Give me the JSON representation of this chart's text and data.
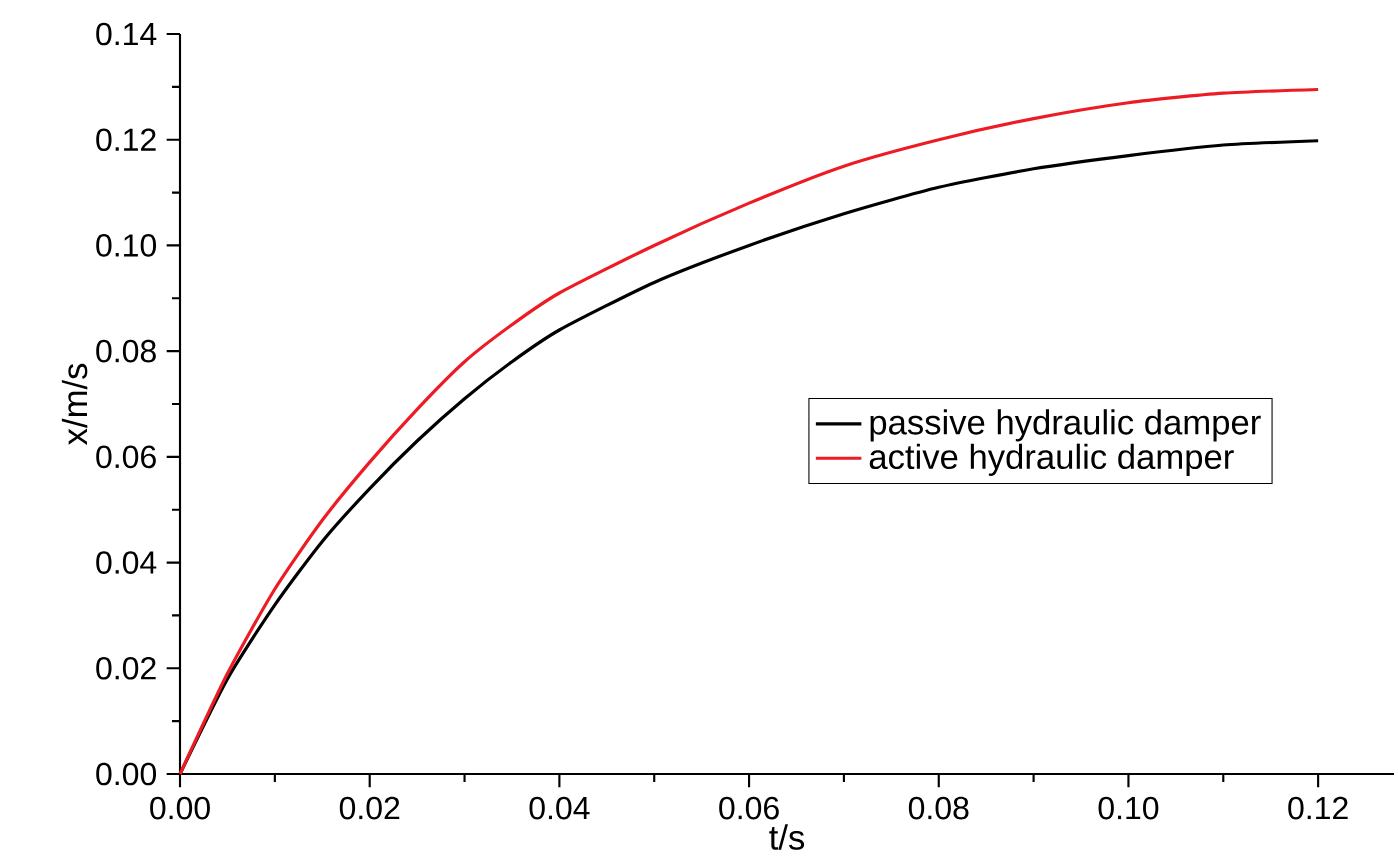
{
  "chart_data": {
    "type": "line",
    "xlabel": "t/s",
    "ylabel": "x/m/s",
    "xlim": [
      0,
      0.128
    ],
    "ylim": [
      0,
      0.14
    ],
    "xticks": [
      {
        "value": 0,
        "label": "0.00"
      },
      {
        "value": 0.02,
        "label": "0.02"
      },
      {
        "value": 0.04,
        "label": "0.04"
      },
      {
        "value": 0.06,
        "label": "0.06"
      },
      {
        "value": 0.08,
        "label": "0.08"
      },
      {
        "value": 0.1,
        "label": "0.10"
      },
      {
        "value": 0.12,
        "label": "0.12"
      }
    ],
    "yticks": [
      {
        "value": 0,
        "label": "0.00"
      },
      {
        "value": 0.02,
        "label": "0.02"
      },
      {
        "value": 0.04,
        "label": "0.04"
      },
      {
        "value": 0.06,
        "label": "0.06"
      },
      {
        "value": 0.08,
        "label": "0.08"
      },
      {
        "value": 0.1,
        "label": "0.10"
      },
      {
        "value": 0.12,
        "label": "0.12"
      },
      {
        "value": 0.14,
        "label": "0.14"
      }
    ],
    "x": [
      0,
      0.005,
      0.01,
      0.015,
      0.02,
      0.025,
      0.03,
      0.035,
      0.04,
      0.05,
      0.06,
      0.07,
      0.08,
      0.09,
      0.1,
      0.11,
      0.12
    ],
    "series": [
      {
        "name": "passive hydraulic damper",
        "color": "#000000",
        "values": [
          0,
          0.018,
          0.032,
          0.044,
          0.054,
          0.063,
          0.071,
          0.078,
          0.084,
          0.093,
          0.1,
          0.106,
          0.111,
          0.1145,
          0.117,
          0.119,
          0.1198
        ]
      },
      {
        "name": "active hydraulic damper",
        "color": "#ed1c24",
        "values": [
          0,
          0.019,
          0.035,
          0.048,
          0.059,
          0.069,
          0.078,
          0.085,
          0.091,
          0.1,
          0.108,
          0.115,
          0.12,
          0.124,
          0.127,
          0.1288,
          0.1295
        ]
      }
    ],
    "legend": "center right",
    "grid": false,
    "marker": "none",
    "line_style": "solid"
  }
}
